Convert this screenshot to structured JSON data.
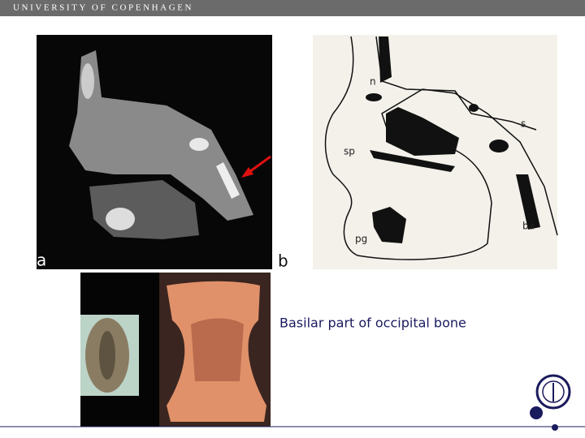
{
  "header": {
    "title": "UNIVERSITY OF COPENHAGEN"
  },
  "figure_a": {
    "label": "a"
  },
  "figure_b": {
    "label": "b",
    "annotations": [
      "n",
      "s",
      "sp",
      "ba",
      "pg"
    ]
  },
  "caption": "Basilar part of occipital bone"
}
